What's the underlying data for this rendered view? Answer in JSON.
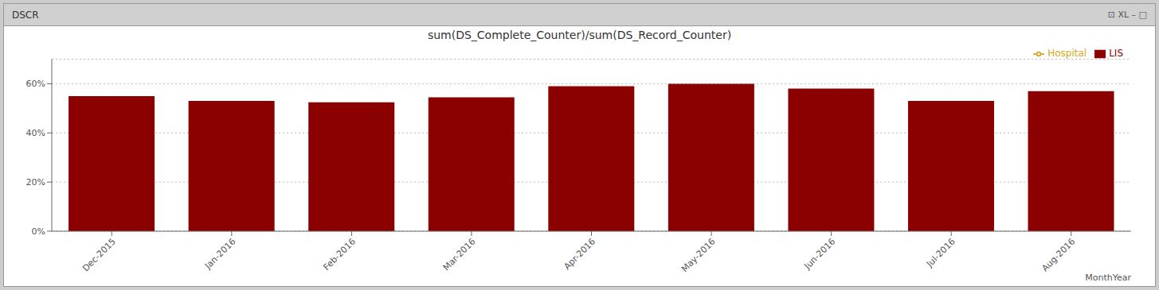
{
  "chart_data": {
    "type": "bar",
    "title": "sum(DS_Complete_Counter)/sum(DS_Record_Counter)",
    "annotations": [
      "DSCR",
      "⊡ XL – □"
    ],
    "x_label": "MonthYear",
    "categories": [
      "Dec-2015",
      "Jan-2016",
      "Feb-2016",
      "Mar-2016",
      "Apr-2016",
      "May-2016",
      "Jun-2016",
      "Jul-2016",
      "Aug-2016"
    ],
    "series": [
      {
        "name": "Hospital",
        "type": "line",
        "color": "#DAA520",
        "marker": "circle",
        "values": [
          null,
          null,
          null,
          null,
          null,
          null,
          null,
          null,
          null
        ]
      },
      {
        "name": "LIS",
        "type": "bar",
        "color": "#8B0000",
        "values": [
          0.55,
          0.53,
          0.525,
          0.545,
          0.59,
          0.6,
          0.58,
          0.53,
          0.57
        ]
      }
    ],
    "ylim": [
      0.0,
      0.7
    ],
    "yticks": [
      {
        "value": 0.0,
        "label": "0%"
      },
      {
        "value": 0.2,
        "label": "20%"
      },
      {
        "value": 0.4,
        "label": "40%"
      },
      {
        "value": 0.6,
        "label": "60%"
      }
    ],
    "grid": true,
    "legend": "upper right"
  }
}
